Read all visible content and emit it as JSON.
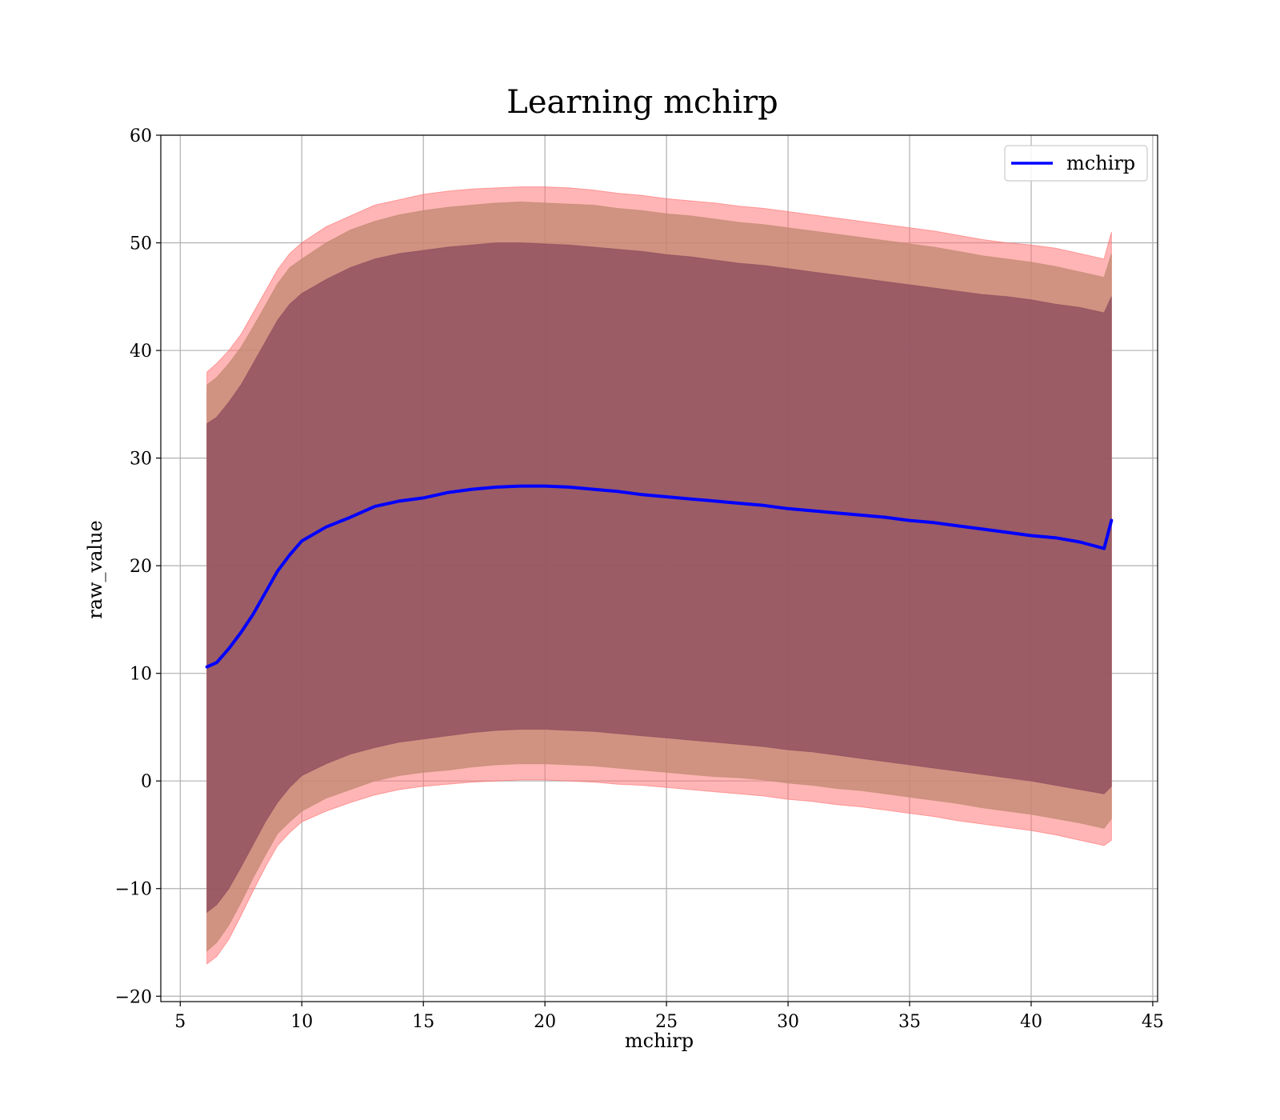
{
  "chart_data": {
    "type": "line",
    "title": "Learning mchirp",
    "xlabel": "mchirp",
    "ylabel": "raw_value",
    "xlim": [
      4.2,
      45.2
    ],
    "ylim": [
      -20.5,
      60
    ],
    "xticks": [
      5,
      10,
      15,
      20,
      25,
      30,
      35,
      40,
      45
    ],
    "yticks": [
      -20,
      -10,
      0,
      10,
      20,
      30,
      40,
      50,
      60
    ],
    "ytick_labels": [
      "−20",
      "−10",
      "0",
      "10",
      "20",
      "30",
      "40",
      "50",
      "60"
    ],
    "grid": true,
    "legend": {
      "position": "top-right",
      "entries": [
        "mchirp"
      ]
    },
    "colors": {
      "line": "#0000ff",
      "band_outer": "#ff6b6b",
      "band_middle": "#c08870",
      "band_inner": "#8a4a5e"
    },
    "x": [
      6.1,
      6.5,
      7.0,
      7.5,
      8.0,
      8.5,
      9.0,
      9.5,
      10.0,
      11.0,
      12.0,
      13.0,
      14.0,
      15.0,
      16.0,
      17.0,
      18.0,
      19.0,
      20.0,
      21.0,
      22.0,
      23.0,
      24.0,
      25.0,
      26.0,
      27.0,
      28.0,
      29.0,
      30.0,
      31.0,
      32.0,
      33.0,
      34.0,
      35.0,
      36.0,
      37.0,
      38.0,
      39.0,
      40.0,
      41.0,
      42.0,
      43.0,
      43.3
    ],
    "series": [
      {
        "name": "mchirp",
        "values": [
          10.6,
          11.0,
          12.3,
          13.8,
          15.5,
          17.5,
          19.5,
          21.0,
          22.3,
          23.6,
          24.5,
          25.5,
          26.0,
          26.3,
          26.8,
          27.1,
          27.3,
          27.4,
          27.4,
          27.3,
          27.1,
          26.9,
          26.6,
          26.4,
          26.2,
          26.0,
          25.8,
          25.6,
          25.3,
          25.1,
          24.9,
          24.7,
          24.5,
          24.2,
          24.0,
          23.7,
          23.4,
          23.1,
          22.8,
          22.6,
          22.2,
          21.6,
          24.2
        ]
      }
    ],
    "bands": [
      {
        "role": "outer",
        "lower": [
          -17.0,
          -16.3,
          -14.7,
          -12.5,
          -10.2,
          -8.0,
          -6.0,
          -4.8,
          -3.8,
          -2.8,
          -2.0,
          -1.3,
          -0.8,
          -0.5,
          -0.3,
          -0.1,
          0.0,
          0.1,
          0.1,
          0.0,
          -0.1,
          -0.3,
          -0.4,
          -0.6,
          -0.8,
          -1.0,
          -1.2,
          -1.4,
          -1.7,
          -1.9,
          -2.2,
          -2.4,
          -2.7,
          -3.0,
          -3.3,
          -3.7,
          -4.0,
          -4.3,
          -4.6,
          -5.0,
          -5.5,
          -6.0,
          -5.5
        ],
        "upper": [
          38.0,
          38.8,
          40.0,
          41.5,
          43.5,
          45.5,
          47.5,
          49.0,
          50.0,
          51.5,
          52.5,
          53.5,
          54.0,
          54.5,
          54.8,
          55.0,
          55.1,
          55.2,
          55.2,
          55.1,
          54.9,
          54.6,
          54.4,
          54.1,
          53.9,
          53.7,
          53.4,
          53.2,
          52.9,
          52.6,
          52.3,
          52.0,
          51.7,
          51.4,
          51.1,
          50.7,
          50.3,
          50.0,
          49.8,
          49.5,
          49.0,
          48.5,
          51.0
        ]
      },
      {
        "role": "middle",
        "lower": [
          -15.8,
          -15.0,
          -13.4,
          -11.3,
          -9.0,
          -6.9,
          -4.9,
          -3.8,
          -2.8,
          -1.6,
          -0.8,
          0.0,
          0.5,
          0.8,
          1.0,
          1.3,
          1.5,
          1.6,
          1.6,
          1.5,
          1.4,
          1.2,
          1.0,
          0.8,
          0.6,
          0.4,
          0.3,
          0.1,
          -0.2,
          -0.4,
          -0.7,
          -0.9,
          -1.2,
          -1.5,
          -1.8,
          -2.1,
          -2.5,
          -2.8,
          -3.1,
          -3.5,
          -3.9,
          -4.4,
          -3.5
        ],
        "upper": [
          36.8,
          37.5,
          38.8,
          40.3,
          42.2,
          44.2,
          46.2,
          47.7,
          48.5,
          50.0,
          51.2,
          52.0,
          52.6,
          53.0,
          53.3,
          53.5,
          53.7,
          53.8,
          53.7,
          53.6,
          53.5,
          53.2,
          53.0,
          52.7,
          52.5,
          52.2,
          51.9,
          51.7,
          51.4,
          51.1,
          50.8,
          50.5,
          50.2,
          49.9,
          49.6,
          49.2,
          48.8,
          48.5,
          48.2,
          47.8,
          47.3,
          46.8,
          49.0
        ]
      },
      {
        "role": "inner",
        "lower": [
          -12.2,
          -11.5,
          -10.0,
          -8.0,
          -5.9,
          -3.8,
          -2.0,
          -0.6,
          0.5,
          1.6,
          2.5,
          3.1,
          3.6,
          3.9,
          4.2,
          4.5,
          4.7,
          4.8,
          4.8,
          4.7,
          4.6,
          4.4,
          4.2,
          4.0,
          3.8,
          3.6,
          3.4,
          3.2,
          2.9,
          2.7,
          2.4,
          2.1,
          1.8,
          1.5,
          1.2,
          0.9,
          0.6,
          0.3,
          0.0,
          -0.4,
          -0.8,
          -1.2,
          -0.5
        ],
        "upper": [
          33.2,
          33.8,
          35.2,
          36.8,
          38.8,
          40.8,
          42.8,
          44.3,
          45.3,
          46.6,
          47.7,
          48.5,
          49.0,
          49.3,
          49.6,
          49.8,
          50.0,
          50.0,
          49.9,
          49.8,
          49.6,
          49.4,
          49.2,
          48.9,
          48.7,
          48.4,
          48.1,
          47.9,
          47.6,
          47.3,
          47.0,
          46.7,
          46.4,
          46.1,
          45.8,
          45.5,
          45.2,
          45.0,
          44.7,
          44.3,
          44.0,
          43.5,
          45.0
        ]
      }
    ]
  }
}
